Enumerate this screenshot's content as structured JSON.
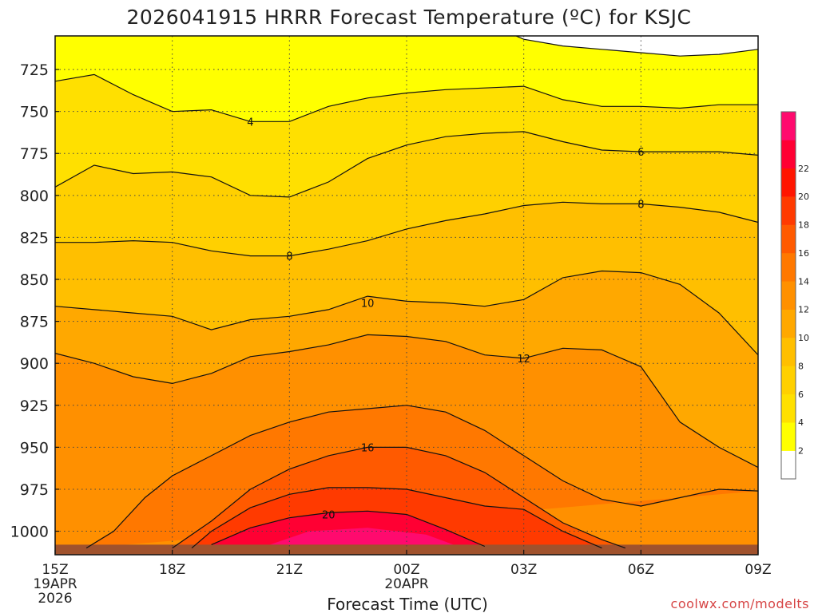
{
  "chart_data": {
    "type": "contour",
    "title": "2026041915 HRRR Forecast Temperature (ºC) for KSJC",
    "xlabel": "Forecast Time (UTC)",
    "ylabel": "",
    "credit": "coolwx.com/modelts",
    "x_ticks": [
      {
        "label": "15Z",
        "sub1": "19APR",
        "sub2": "2026",
        "hour": 15
      },
      {
        "label": "18Z",
        "sub1": "",
        "sub2": "",
        "hour": 18
      },
      {
        "label": "21Z",
        "sub1": "",
        "sub2": "",
        "hour": 21
      },
      {
        "label": "00Z",
        "sub1": "20APR",
        "sub2": "",
        "hour": 24
      },
      {
        "label": "03Z",
        "sub1": "",
        "sub2": "",
        "hour": 27
      },
      {
        "label": "06Z",
        "sub1": "",
        "sub2": "",
        "hour": 30
      },
      {
        "label": "09Z",
        "sub1": "",
        "sub2": "",
        "hour": 33
      }
    ],
    "xlim_hours": [
      15,
      33
    ],
    "y_ticks": [
      725,
      750,
      775,
      800,
      825,
      850,
      875,
      900,
      925,
      950,
      975,
      1000
    ],
    "ylim_hpa": [
      705,
      1014
    ],
    "ground_hpa": 1008,
    "ground_color": "#a0522d",
    "colorbar": {
      "ticks": [
        2,
        4,
        6,
        8,
        10,
        12,
        14,
        16,
        18,
        20,
        22
      ],
      "colors": [
        "#ffffff",
        "#ffff00",
        "#ffe000",
        "#ffd000",
        "#ffbf00",
        "#ffa800",
        "#ff9000",
        "#ff7800",
        "#ff5a00",
        "#ff3a00",
        "#ff1500",
        "#ff0033",
        "#ff0a6e"
      ]
    },
    "series": [
      {
        "name": "2",
        "hour": [
          26.8,
          27,
          28,
          29,
          30,
          31,
          32,
          33
        ],
        "hpa": [
          705,
          707,
          711,
          713,
          715,
          717,
          716,
          713
        ]
      },
      {
        "name": "4",
        "hour": [
          15,
          16,
          17,
          18,
          19,
          20,
          21,
          22,
          23,
          24,
          25,
          26,
          27,
          28,
          29,
          30,
          31,
          32,
          33
        ],
        "hpa": [
          732,
          728,
          740,
          750,
          749,
          756,
          756,
          747,
          742,
          739,
          737,
          736,
          735,
          743,
          747,
          747,
          748,
          746,
          746
        ]
      },
      {
        "name": "6",
        "hour": [
          15,
          16,
          17,
          18,
          19,
          20,
          21,
          22,
          23,
          24,
          25,
          26,
          27,
          28,
          29,
          30,
          31,
          32,
          33
        ],
        "hpa": [
          795,
          782,
          787,
          786,
          789,
          800,
          801,
          792,
          778,
          770,
          765,
          763,
          762,
          768,
          773,
          774,
          774,
          774,
          776
        ]
      },
      {
        "name": "8",
        "hour": [
          15,
          16,
          17,
          18,
          19,
          20,
          21,
          22,
          23,
          24,
          25,
          26,
          27,
          28,
          29,
          30,
          31,
          32,
          33
        ],
        "hpa": [
          828,
          828,
          827,
          828,
          833,
          836,
          836,
          832,
          827,
          820,
          815,
          811,
          806,
          804,
          805,
          805,
          807,
          810,
          816
        ]
      },
      {
        "name": "10",
        "hour": [
          15,
          16,
          17,
          18,
          19,
          20,
          21,
          22,
          23,
          24,
          25,
          26,
          27,
          28,
          29,
          30,
          31,
          32,
          33
        ],
        "hpa": [
          866,
          868,
          870,
          872,
          880,
          874,
          872,
          868,
          860,
          863,
          864,
          866,
          862,
          849,
          845,
          846,
          853,
          870,
          895
        ]
      },
      {
        "name": "12",
        "hour": [
          15,
          16,
          17,
          18,
          19,
          20,
          21,
          22,
          23,
          24,
          25,
          26,
          27,
          28,
          29,
          30,
          31,
          32,
          33
        ],
        "hpa": [
          894,
          900,
          908,
          912,
          906,
          896,
          893,
          889,
          883,
          884,
          887,
          895,
          897,
          891,
          892,
          902,
          935,
          950,
          962
        ]
      },
      {
        "name": "14",
        "hour": [
          15.8,
          16.5,
          17.3,
          18,
          19,
          20,
          21,
          22,
          23,
          24,
          25,
          26,
          27,
          28,
          29,
          30,
          31,
          32,
          33
        ],
        "hpa": [
          1010,
          1000,
          980,
          967,
          955,
          943,
          935,
          929,
          927,
          925,
          929,
          940,
          955,
          970,
          981,
          985,
          980,
          975,
          976
        ]
      },
      {
        "name": "16",
        "hour": [
          18,
          19,
          20,
          21,
          22,
          23,
          24,
          25,
          26,
          27,
          28,
          29,
          29.6
        ],
        "hpa": [
          1010,
          994,
          975,
          963,
          955,
          950,
          950,
          955,
          965,
          980,
          995,
          1005,
          1010
        ]
      },
      {
        "name": "18",
        "hour": [
          18.5,
          19,
          20,
          21,
          22,
          23,
          24,
          25,
          26,
          27,
          28,
          29
        ],
        "hpa": [
          1010,
          1000,
          986,
          978,
          974,
          974,
          975,
          980,
          985,
          987,
          1000,
          1010
        ]
      },
      {
        "name": "20",
        "hour": [
          19,
          20,
          21,
          22,
          23,
          24,
          25,
          26
        ],
        "hpa": [
          1008,
          998,
          992,
          989,
          988,
          990,
          999,
          1009
        ]
      }
    ],
    "contour_labels": [
      {
        "text": "4",
        "hour": 20,
        "hpa": 756
      },
      {
        "text": "6",
        "hour": 30,
        "hpa": 774
      },
      {
        "text": "8",
        "hour": 30,
        "hpa": 805
      },
      {
        "text": "8",
        "hour": 21,
        "hpa": 836
      },
      {
        "text": "10",
        "hour": 23,
        "hpa": 864
      },
      {
        "text": "12",
        "hour": 27,
        "hpa": 897
      },
      {
        "text": "16",
        "hour": 23,
        "hpa": 950
      },
      {
        "text": "20",
        "hour": 22,
        "hpa": 990
      }
    ],
    "grid": true,
    "legend": "colorbar-right"
  }
}
